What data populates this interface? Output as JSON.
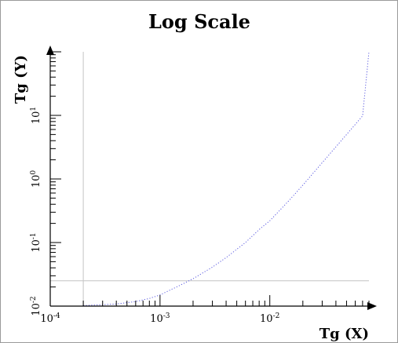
{
  "chart_data": {
    "type": "line",
    "title": "Log Scale",
    "xlabel": "Tg (X)",
    "ylabel": "Tg (Y)",
    "x_scale": "log",
    "y_scale": "log",
    "xlim": [
      0.0001,
      0.08
    ],
    "ylim": [
      0.01,
      100
    ],
    "x_ticks": [
      {
        "base": "10",
        "exp": "-4",
        "value": 0.0001
      },
      {
        "base": "10",
        "exp": "-3",
        "value": 0.001
      },
      {
        "base": "10",
        "exp": "-2",
        "value": 0.01
      }
    ],
    "y_ticks": [
      {
        "base": "10",
        "exp": "-2",
        "value": 0.01
      },
      {
        "base": "10",
        "exp": "-1",
        "value": 0.1
      },
      {
        "base": "10",
        "exp": "0",
        "value": 1
      },
      {
        "base": "10",
        "exp": "1",
        "value": 10
      }
    ],
    "reference_lines": {
      "x": 0.0002,
      "y": 0.025
    },
    "series": [
      {
        "line_style": "dotted",
        "color": "#5a5ae0",
        "x": [
          0.0002,
          0.0004,
          0.0006,
          0.0008,
          0.001,
          0.0015,
          0.002,
          0.003,
          0.004,
          0.006,
          0.008,
          0.01,
          0.015,
          0.02,
          0.03,
          0.04,
          0.05,
          0.06,
          0.07,
          0.08
        ],
        "y": [
          0.0102,
          0.0108,
          0.0118,
          0.0132,
          0.015,
          0.021,
          0.027,
          0.041,
          0.058,
          0.1,
          0.16,
          0.22,
          0.46,
          0.8,
          1.8,
          3.2,
          5,
          7.2,
          9.8,
          100
        ]
      }
    ]
  }
}
